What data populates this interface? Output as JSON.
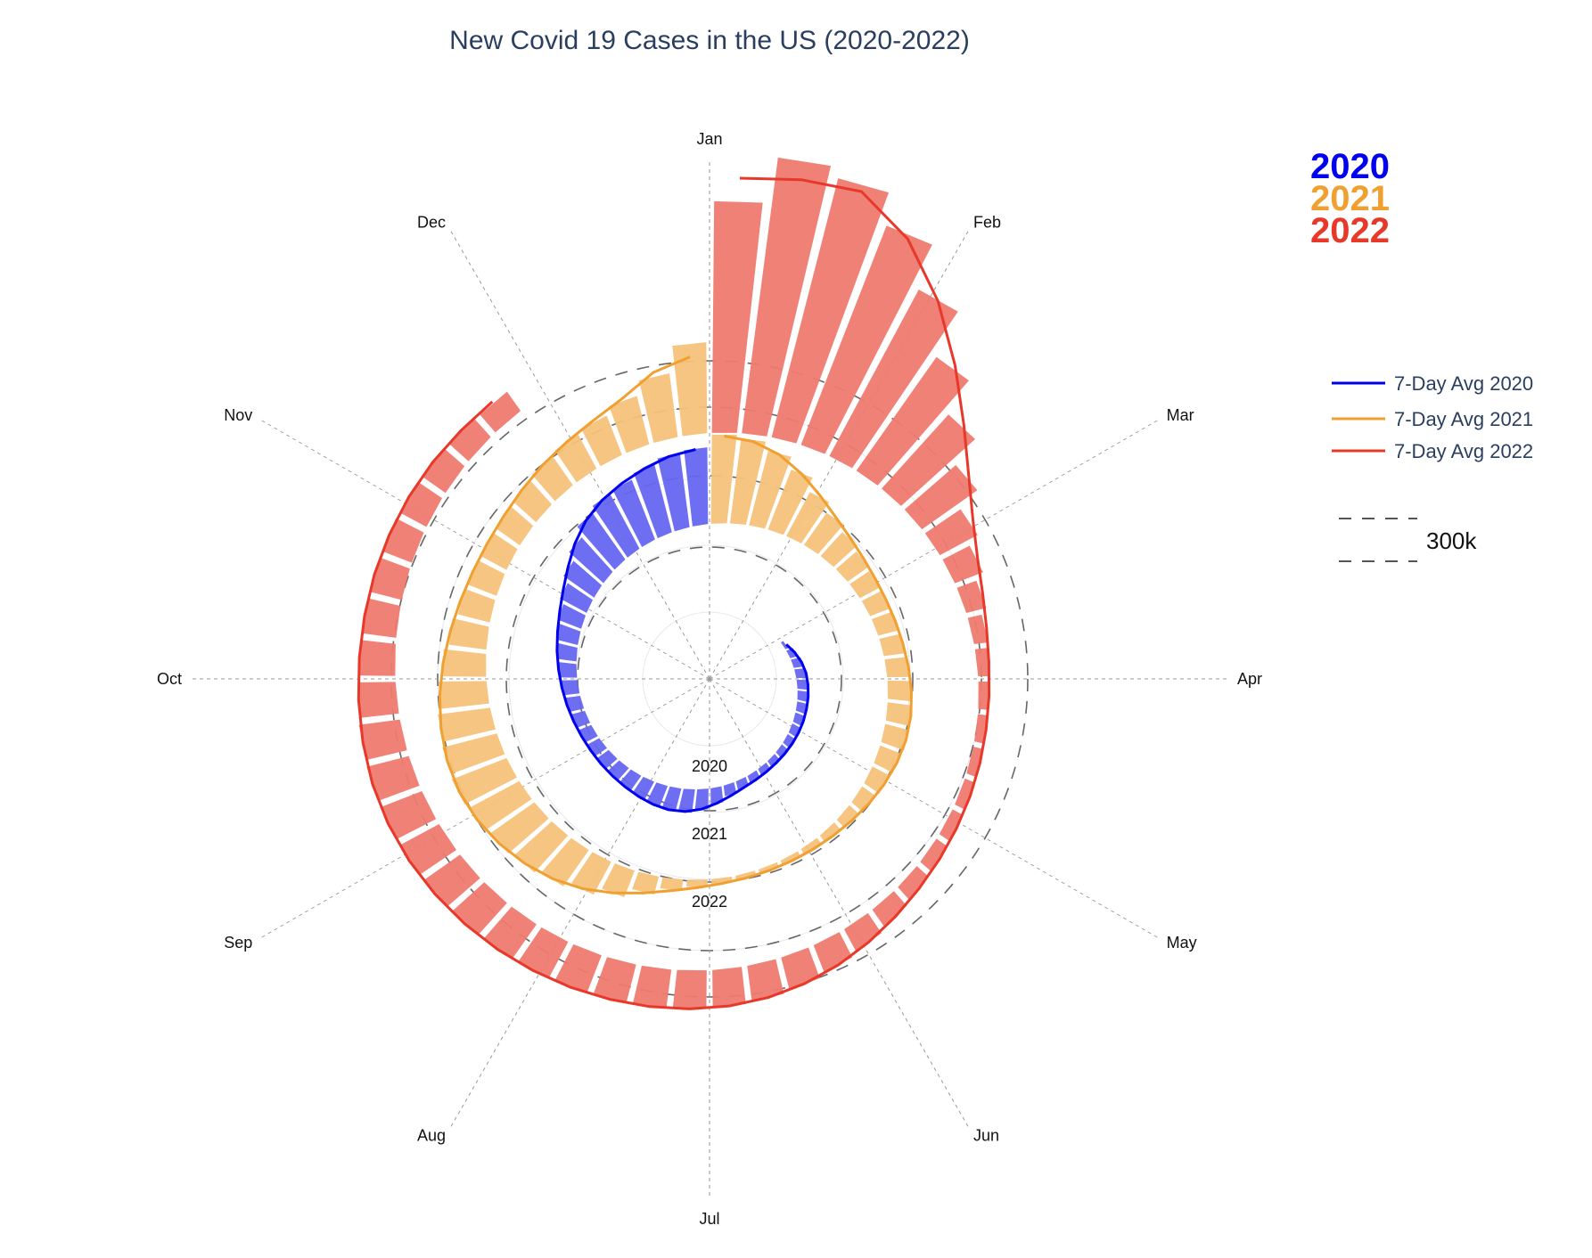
{
  "title": "New Covid 19 Cases in the US (2020-2022)",
  "year_badges": [
    {
      "label": "2020",
      "color": "#0000ee"
    },
    {
      "label": "2021",
      "color": "#f0a030"
    },
    {
      "label": "2022",
      "color": "#e8382a"
    }
  ],
  "legend": {
    "items": [
      {
        "label": "7-Day Avg 2020",
        "color": "#0000ee"
      },
      {
        "label": "7-Day Avg 2021",
        "color": "#f0a030"
      },
      {
        "label": "7-Day Avg 2022",
        "color": "#e8382a"
      }
    ],
    "reference_label": "300k"
  },
  "chart_data": {
    "type": "bar",
    "subtype": "spiral-polar",
    "title": "New Covid 19 Cases in the US (2020-2022)",
    "angular_axis": {
      "labels": [
        "Jan",
        "Feb",
        "Mar",
        "Apr",
        "May",
        "Jun",
        "Jul",
        "Aug",
        "Sep",
        "Oct",
        "Nov",
        "Dec"
      ],
      "direction": "clockwise",
      "zero": "Jan at top"
    },
    "ring_labels": [
      "2020",
      "2021",
      "2022"
    ],
    "reference_rings": [
      {
        "label": "300k",
        "value": 300000,
        "style": "dashed",
        "placement": "around each year ring"
      }
    ],
    "series": [
      {
        "name": "7-Day Avg 2020",
        "year": "2020",
        "color": "#0000ee",
        "bar_color": "#6666f2",
        "weekly_cases": [
          0,
          0,
          0,
          0,
          0,
          0,
          0,
          0,
          0,
          8000,
          20000,
          28000,
          30000,
          32000,
          30000,
          29000,
          28000,
          26000,
          24000,
          22000,
          20000,
          20000,
          21000,
          24000,
          30000,
          45000,
          58000,
          66000,
          67000,
          62000,
          55000,
          50000,
          45000,
          42000,
          40000,
          38000,
          40000,
          43000,
          45000,
          50000,
          57000,
          62000,
          70000,
          85000,
          105000,
          130000,
          160000,
          175000,
          180000,
          195000,
          210000,
          215000
        ]
      },
      {
        "name": "7-Day Avg 2021",
        "year": "2021",
        "color": "#f0a030",
        "bar_color": "#f4c27a",
        "weekly_cases": [
          250000,
          240000,
          215000,
          180000,
          140000,
          110000,
          90000,
          75000,
          65000,
          60000,
          58000,
          60000,
          62000,
          66000,
          70000,
          68000,
          60000,
          52000,
          42000,
          32000,
          24000,
          18000,
          14000,
          13000,
          12000,
          14000,
          20000,
          32000,
          52000,
          80000,
          105000,
          125000,
          140000,
          150000,
          160000,
          165000,
          158000,
          148000,
          135000,
          120000,
          105000,
          92000,
          85000,
          80000,
          80000,
          88000,
          98000,
          108000,
          118000,
          140000,
          180000,
          255000
        ]
      },
      {
        "name": "7-Day Avg 2022",
        "year": "2022",
        "color": "#e8382a",
        "bar_color": "#ee7a6f",
        "weekly_cases": [
          650000,
          780000,
          750000,
          660000,
          530000,
          390000,
          280000,
          190000,
          120000,
          85000,
          58000,
          40000,
          33000,
          28000,
          27000,
          28000,
          30000,
          34000,
          38000,
          45000,
          55000,
          68000,
          80000,
          92000,
          100000,
          105000,
          108000,
          110000,
          112000,
          114000,
          117000,
          120000,
          122000,
          125000,
          126000,
          126000,
          122000,
          116000,
          106000,
          100000,
          95000,
          90000,
          88000,
          82000,
          78000,
          74000,
          66000
        ]
      }
    ]
  }
}
